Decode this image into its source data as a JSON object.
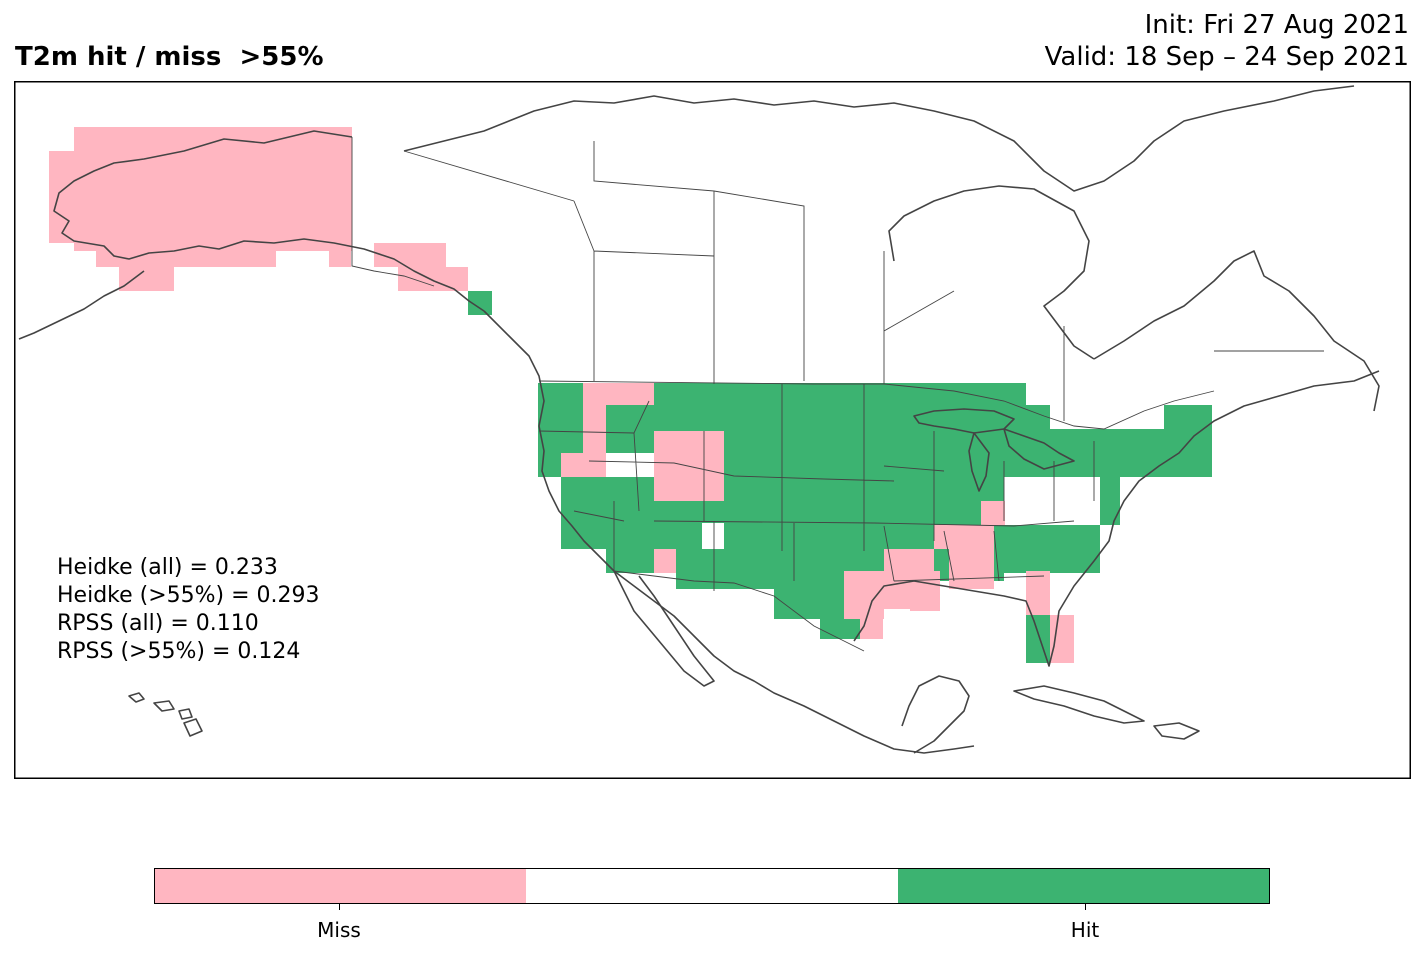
{
  "header": {
    "title": "T2m hit / miss  >55%",
    "init": "Init: Fri 27 Aug 2021",
    "valid": "Valid: 18 Sep – 24 Sep 2021"
  },
  "stats": [
    "Heidke (all) = 0.233",
    "Heidke (>55%) = 0.293",
    "RPSS (all) = 0.110",
    "RPSS (>55%) = 0.124"
  ],
  "colors": {
    "miss": "#ffb6c1",
    "neutral": "#ffffff",
    "hit": "#3cb371",
    "coast": "#444444"
  },
  "legend": {
    "miss_label": "Miss",
    "hit_label": "Hit"
  }
}
